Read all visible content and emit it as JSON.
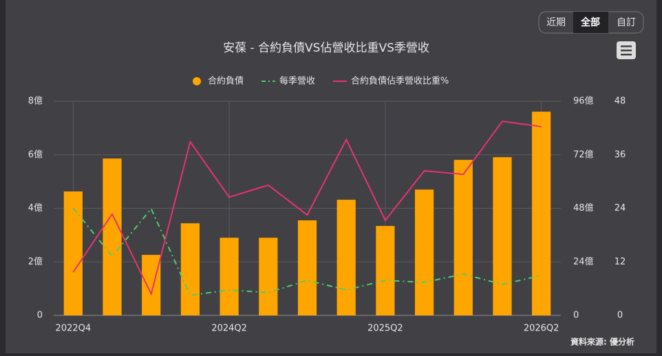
{
  "controls": [
    "近期",
    "全部",
    "自訂"
  ],
  "source": "資料來源: 優分析",
  "chart_data": {
    "type": "bar",
    "title": "安葆 - 合約負債VS佔營收比重VS季營收",
    "categories": [
      "2022Q4",
      null,
      null,
      null,
      "2024Q2",
      null,
      null,
      null,
      "2025Q2",
      null,
      null,
      null,
      "2026Q2"
    ],
    "series": [
      {
        "name": "合約負債",
        "type": "bar",
        "color": "#ffa500",
        "axis": "y",
        "values": [
          4.63,
          5.86,
          2.26,
          3.44,
          2.9,
          2.9,
          3.55,
          4.32,
          3.34,
          4.7,
          5.81,
          5.91,
          7.61
        ]
      },
      {
        "name": "每季營收",
        "type": "line",
        "dashed": true,
        "color": "#4ccf6a",
        "axis": "y2",
        "values": [
          48.1,
          26.5,
          47.8,
          9,
          11.4,
          10.2,
          15.7,
          11.4,
          15.7,
          14.8,
          18.5,
          13.9,
          17.9
        ]
      },
      {
        "name": "合約負債佔季營收比重%",
        "type": "line",
        "color": "#e8336d",
        "axis": "y3",
        "values": [
          9.7,
          22.7,
          4.8,
          38.9,
          26.5,
          29.2,
          22.5,
          39.4,
          21.3,
          32.4,
          31.6,
          43.5,
          42.3
        ]
      }
    ],
    "ylim": [
      0,
      8
    ],
    "yticks": [
      0,
      {
        "value": 2,
        "label": "2億"
      },
      {
        "value": 4,
        "label": "4億"
      },
      {
        "value": 6,
        "label": "6億"
      },
      {
        "value": 8,
        "label": "8億"
      }
    ],
    "y2lim": [
      0,
      96
    ],
    "y2ticks": [
      0,
      {
        "value": 24,
        "label": "24億"
      },
      {
        "value": 48,
        "label": "48億"
      },
      {
        "value": 72,
        "label": "72億"
      },
      {
        "value": 96,
        "label": "96億"
      }
    ],
    "y3lim": [
      0,
      48
    ],
    "y3ticks": [
      0,
      12,
      24,
      36,
      48
    ],
    "grid": true
  }
}
